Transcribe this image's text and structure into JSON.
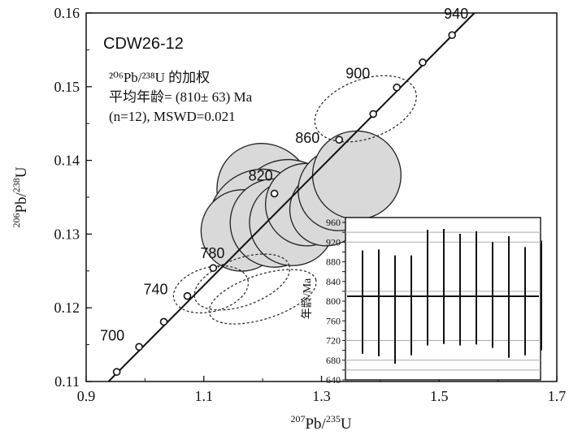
{
  "chart_data": {
    "type": "scatter",
    "subtype": "U-Pb concordia diagram with inset weighted-mean plot",
    "sample": "CDW26-12",
    "annotation_lines": [
      "²⁰⁶Pb/²³⁸U 的加权",
      "平均年龄= (810± 63) Ma",
      "(n=12), MSWD=0.021"
    ],
    "xlabel": {
      "sup1": "207",
      "el1": "Pb/",
      "sup2": "235",
      "el2": "U"
    },
    "ylabel": {
      "sup1": "206",
      "el1": "Pb/",
      "sup2": "238",
      "el2": "U"
    },
    "xlim": [
      0.9,
      1.7
    ],
    "ylim": [
      0.11,
      0.16
    ],
    "x_ticks": [
      "0.9",
      "1.1",
      "1.3",
      "1.5",
      "1.7"
    ],
    "y_ticks": [
      "0.11",
      "0.12",
      "0.13",
      "0.14",
      "0.15",
      "0.16"
    ],
    "concordia_markers": [
      {
        "age": "700",
        "x": 0.99,
        "y": 0.1147
      },
      {
        "age": "740",
        "x": 1.072,
        "y": 0.1216
      },
      {
        "age": "780",
        "x": 1.116,
        "y": 0.1254
      },
      {
        "age": "820",
        "x": 1.22,
        "y": 0.1355
      },
      {
        "age": "860",
        "x": 1.33,
        "y": 0.1428
      },
      {
        "age": "900",
        "x": 1.388,
        "y": 0.1463
      },
      {
        "age": "940",
        "x": 1.522,
        "y": 0.157
      }
    ],
    "extra_markers": [
      {
        "x": 0.952,
        "y": 0.1113
      },
      {
        "x": 1.032,
        "y": 0.1181
      },
      {
        "x": 1.428,
        "y": 0.1499
      },
      {
        "x": 1.472,
        "y": 0.1533
      }
    ],
    "concordia_line": [
      [
        0.938,
        0.11
      ],
      [
        1.56,
        0.16
      ]
    ],
    "ellipses_concordant": [
      {
        "cx": 1.205,
        "cy": 0.1355,
        "rx": 0.08,
        "ry": 0.007,
        "angle": -35
      },
      {
        "cx": 1.24,
        "cy": 0.1335,
        "rx": 0.085,
        "ry": 0.0065,
        "angle": -40
      },
      {
        "cx": 1.19,
        "cy": 0.1325,
        "rx": 0.085,
        "ry": 0.006,
        "angle": -38
      },
      {
        "cx": 1.165,
        "cy": 0.1305,
        "rx": 0.07,
        "ry": 0.0055,
        "angle": -35
      },
      {
        "cx": 1.22,
        "cy": 0.1315,
        "rx": 0.075,
        "ry": 0.006,
        "angle": -40
      },
      {
        "cx": 1.25,
        "cy": 0.1315,
        "rx": 0.072,
        "ry": 0.0058,
        "angle": -40
      },
      {
        "cx": 1.275,
        "cy": 0.134,
        "rx": 0.07,
        "ry": 0.0056,
        "angle": -42
      },
      {
        "cx": 1.31,
        "cy": 0.1335,
        "rx": 0.065,
        "ry": 0.005,
        "angle": -45
      },
      {
        "cx": 1.33,
        "cy": 0.136,
        "rx": 0.07,
        "ry": 0.0055,
        "angle": -38
      },
      {
        "cx": 1.36,
        "cy": 0.138,
        "rx": 0.075,
        "ry": 0.006,
        "angle": -42
      }
    ],
    "ellipses_excluded": [
      {
        "cx": 1.375,
        "cy": 0.147,
        "rx": 0.09,
        "ry": 0.004,
        "angle": -20
      },
      {
        "cx": 1.112,
        "cy": 0.1225,
        "rx": 0.065,
        "ry": 0.003,
        "angle": -15
      },
      {
        "cx": 1.165,
        "cy": 0.1235,
        "rx": 0.085,
        "ry": 0.0032,
        "angle": -20
      },
      {
        "cx": 1.2,
        "cy": 0.1215,
        "rx": 0.095,
        "ry": 0.003,
        "angle": -18
      }
    ],
    "inset": {
      "ylabel": "年龄/Ma",
      "ylim": [
        640,
        970
      ],
      "y_ticks": [
        "640",
        "660",
        "680",
        "700",
        "720",
        "740",
        "760",
        "780",
        "800",
        "820",
        "840",
        "860",
        "880",
        "900",
        "920",
        "940",
        "960"
      ],
      "gridlines": [
        660,
        680,
        720,
        820,
        920,
        940
      ],
      "mean": 810,
      "bars": [
        {
          "low": 693,
          "high": 903
        },
        {
          "low": 688,
          "high": 905
        },
        {
          "low": 673,
          "high": 893
        },
        {
          "low": 690,
          "high": 893
        },
        {
          "low": 710,
          "high": 945
        },
        {
          "low": 713,
          "high": 947
        },
        {
          "low": 710,
          "high": 937
        },
        {
          "low": 712,
          "high": 942
        },
        {
          "low": 705,
          "high": 920
        },
        {
          "low": 685,
          "high": 932
        },
        {
          "low": 690,
          "high": 910
        },
        {
          "low": 700,
          "high": 923
        }
      ]
    }
  }
}
